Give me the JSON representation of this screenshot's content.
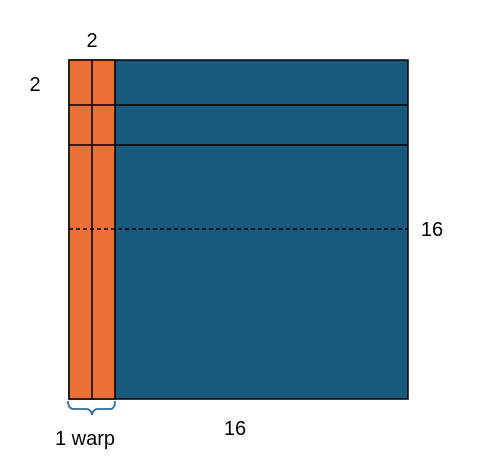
{
  "labels": {
    "top_width": "2",
    "left_height": "2",
    "right_size": "16",
    "bottom_size": "16",
    "warp_caption": "1 warp"
  },
  "colors": {
    "matrix_fill": "#185a7d",
    "tile_fill": "#ea7035",
    "line": "#000000",
    "brace": "#2a6f97",
    "background": "#ffffff"
  }
}
